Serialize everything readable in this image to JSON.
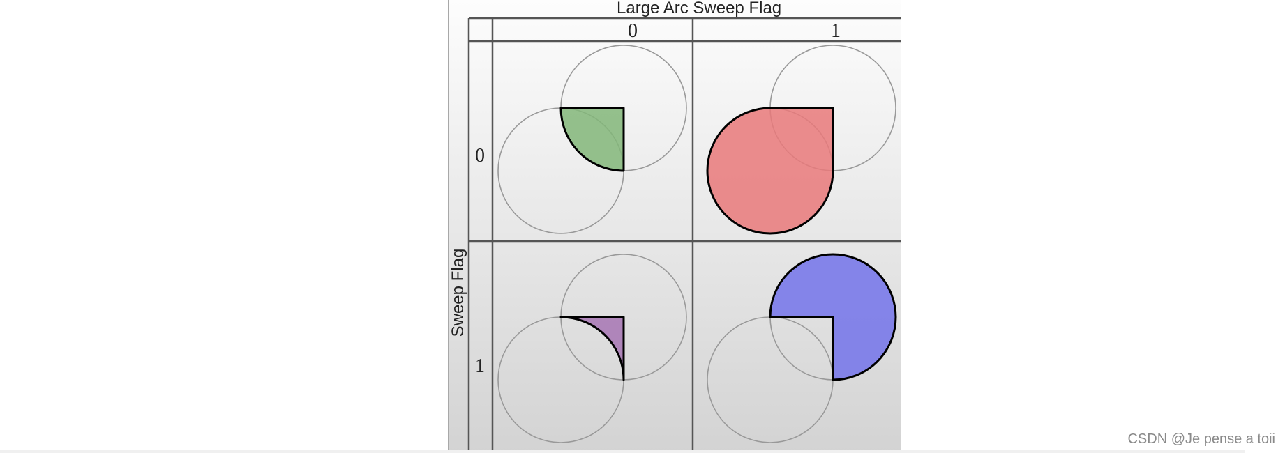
{
  "diagram": {
    "title": "Large Arc Sweep Flag",
    "y_axis_label": "Sweep Flag",
    "column_labels": [
      "0",
      "1"
    ],
    "row_labels": [
      "0",
      "1"
    ],
    "fill_colors": {
      "sweep0_arc0": "#82b679",
      "sweep0_arc1": "#e9797a",
      "sweep1_arc0": "#a775b4",
      "sweep1_arc1": "#7373ea"
    }
  },
  "watermark": "CSDN @Je pense a toii"
}
